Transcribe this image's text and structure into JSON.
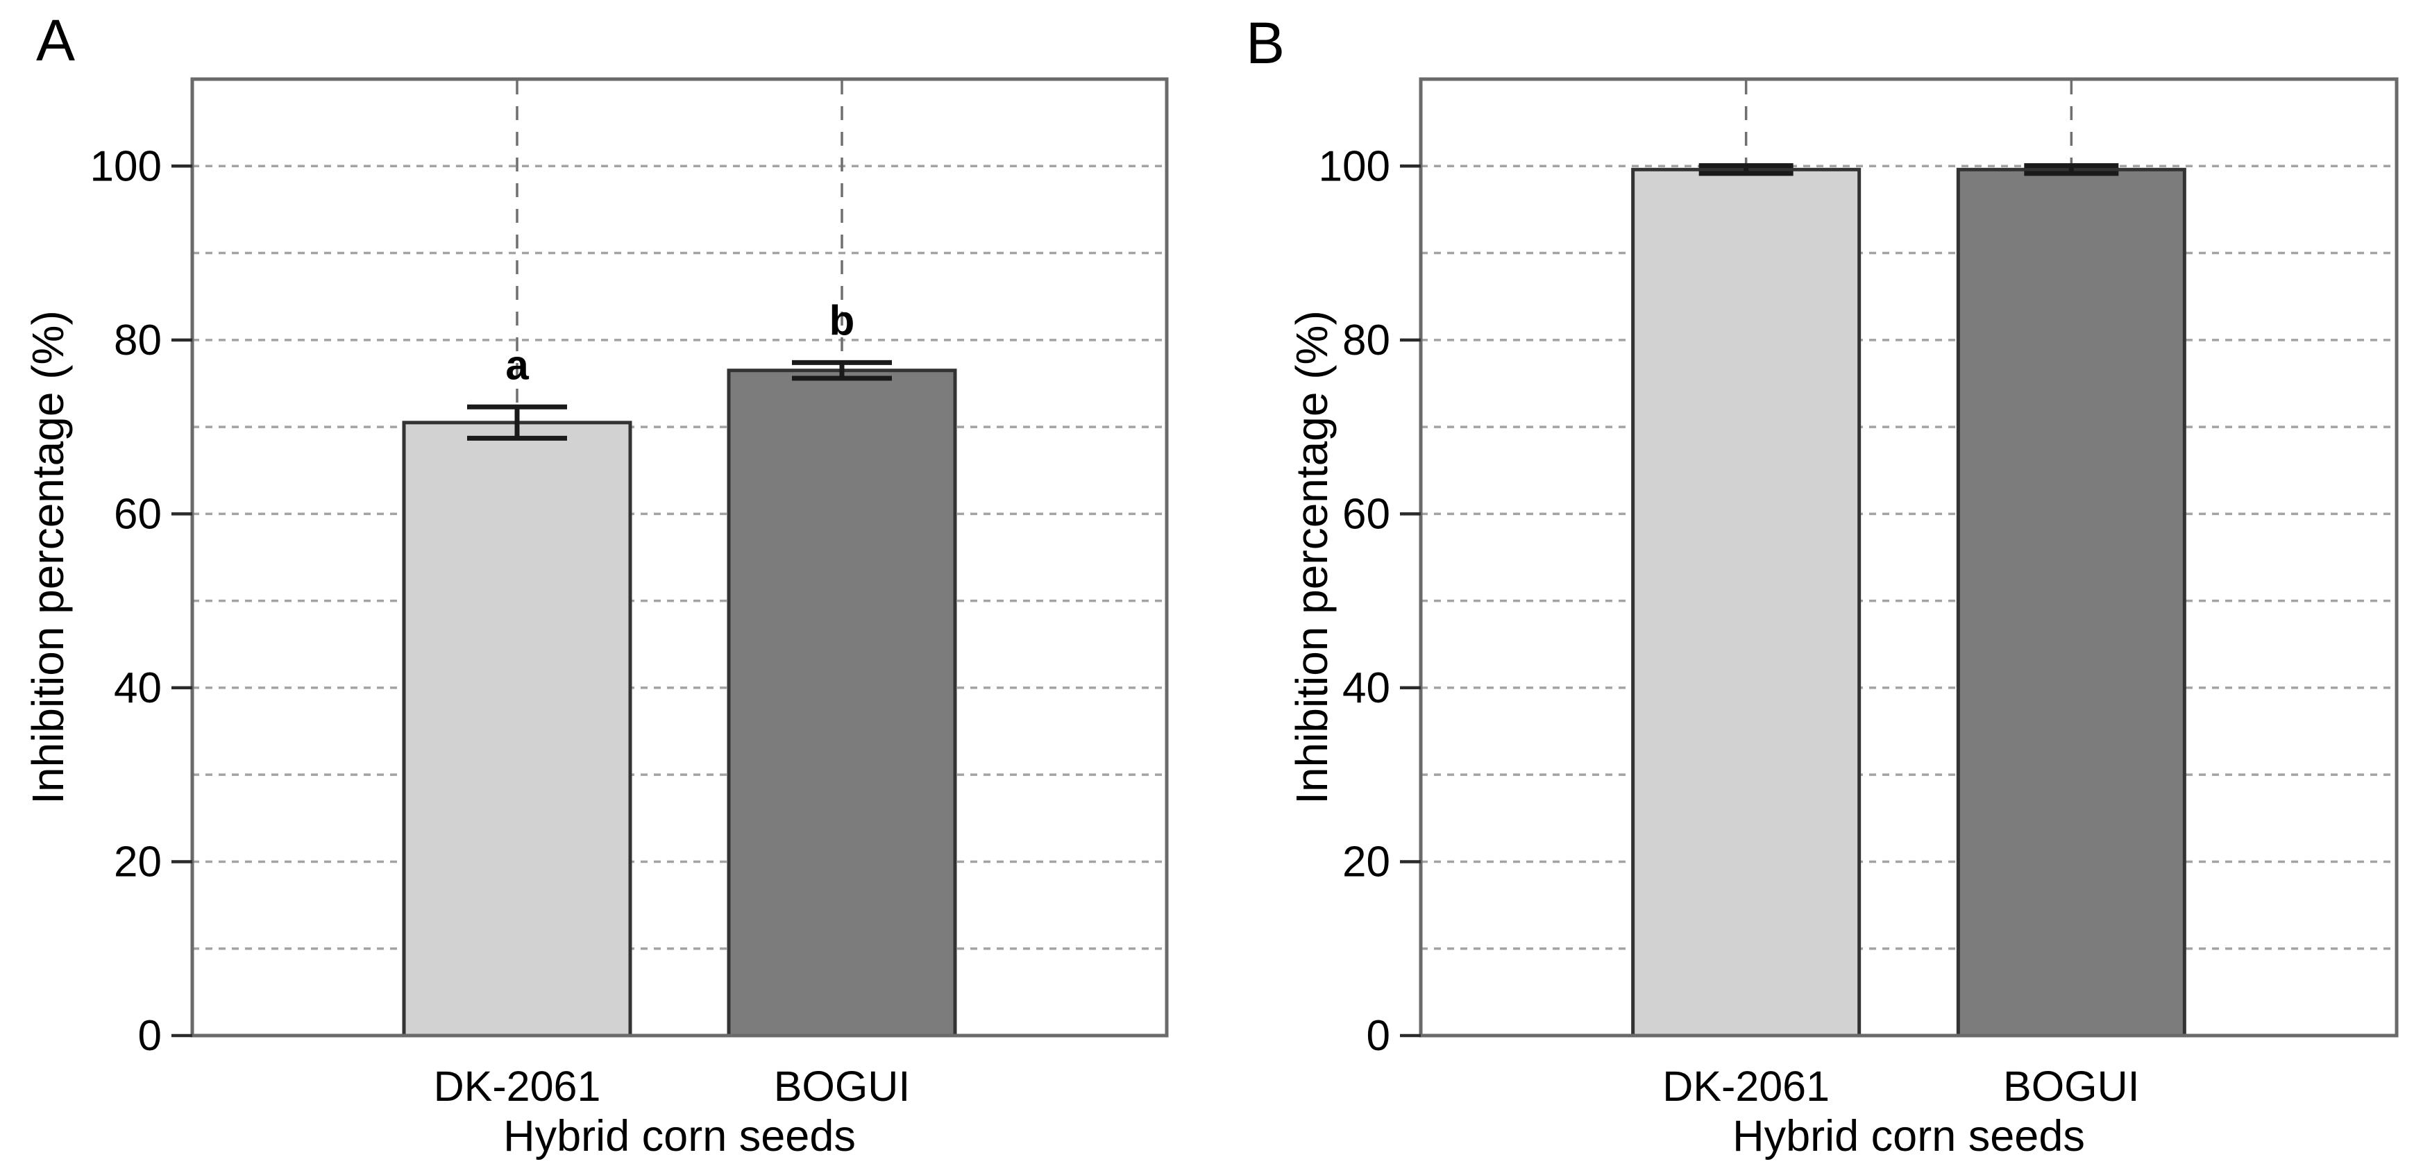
{
  "figure": {
    "background": "#ffffff",
    "panels": [
      {
        "letter": "A",
        "ylabel": "Inhibition percentage (%)",
        "xlabel": "Hybrid corn seeds"
      },
      {
        "letter": "B",
        "ylabel": "Inhibition percentage (%)",
        "xlabel": "Hybrid corn seeds"
      }
    ]
  },
  "chart_data": [
    {
      "panel": "A",
      "type": "bar",
      "title": "",
      "categories": [
        "DK-2061",
        "BOGUI"
      ],
      "values": [
        70.5,
        76.5
      ],
      "errors": [
        1.8,
        0.9
      ],
      "sig_letters": [
        "a",
        "b"
      ],
      "xlabel": "Hybrid corn seeds",
      "ylabel": "Inhibition percentage (%)",
      "yticks": [
        0,
        20,
        40,
        60,
        80,
        100
      ],
      "ylim": [
        0,
        110
      ],
      "grid": "dotted horizontal every 10 units; dashed vertical at each bar center",
      "legend": "none",
      "bar_colors": [
        "#d2d2d2",
        "#7c7c7c"
      ]
    },
    {
      "panel": "B",
      "type": "bar",
      "title": "",
      "categories": [
        "DK-2061",
        "BOGUI"
      ],
      "values": [
        99.6,
        99.6
      ],
      "errors": [
        0.45,
        0.45
      ],
      "sig_letters": [
        "",
        ""
      ],
      "xlabel": "Hybrid corn seeds",
      "ylabel": "Inhibition percentage (%)",
      "yticks": [
        0,
        20,
        40,
        60,
        80,
        100
      ],
      "ylim": [
        0,
        110
      ],
      "grid": "dotted horizontal every 10 units; dashed vertical at each bar center",
      "legend": "none",
      "bar_colors": [
        "#d2d2d2",
        "#7c7c7c"
      ]
    }
  ],
  "colors": {
    "bar_light": "#d2d2d2",
    "bar_dark": "#7c7c7c",
    "bar_border": "#333333",
    "plot_border": "#6a6a6a",
    "grid_horizontal": "#a3a3a3",
    "grid_vertical": "#6f6f6f",
    "error_bar": "#1a1a1a",
    "tick": "#2a2a2a",
    "text": "#000000",
    "background": "#ffffff"
  }
}
